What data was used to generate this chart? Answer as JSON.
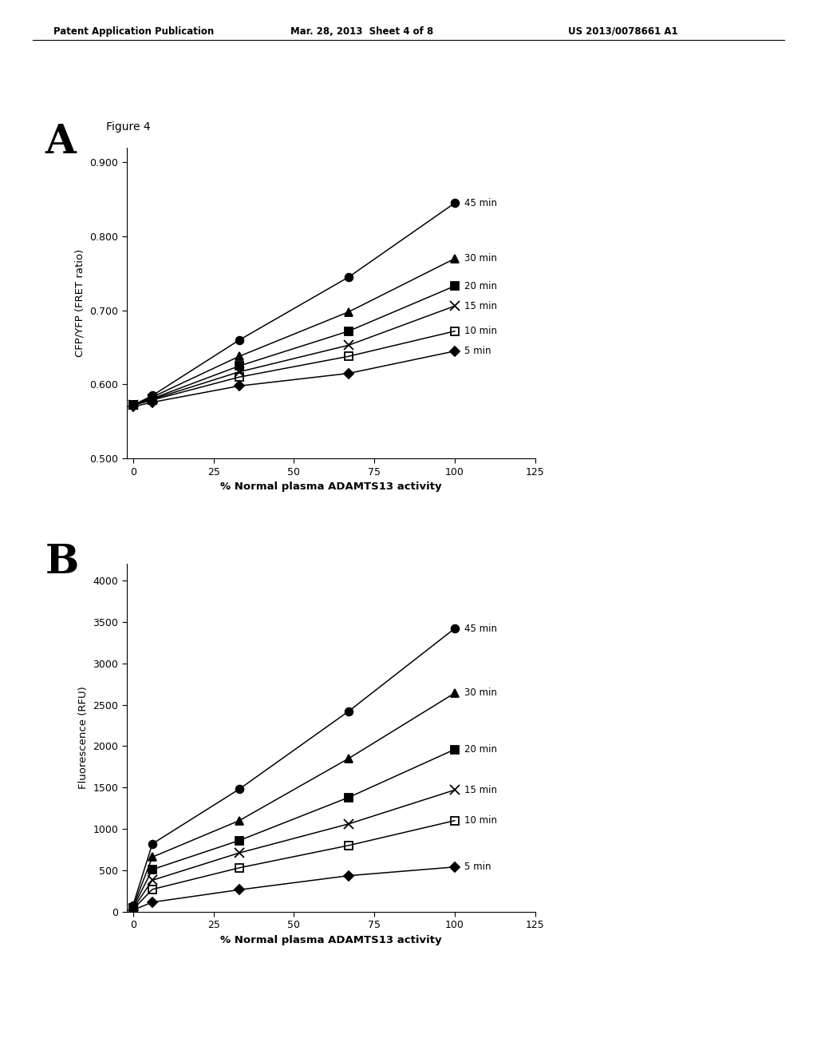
{
  "panel_A": {
    "xlabel": "% Normal plasma ADAMTS13 activity",
    "ylabel": "CFP/YFP (FRET ratio)",
    "xlim": [
      -2,
      125
    ],
    "ylim": [
      0.5,
      0.92
    ],
    "yticks": [
      0.5,
      0.6,
      0.7,
      0.8,
      0.9
    ],
    "xtick_vals": [
      0,
      25,
      50,
      75,
      100,
      125
    ],
    "xtick_labels": [
      "0",
      "25",
      "50",
      "75",
      "100",
      "125"
    ],
    "series": [
      {
        "label": "45 min",
        "x": [
          0,
          6,
          33,
          67,
          100
        ],
        "y": [
          0.572,
          0.585,
          0.66,
          0.745,
          0.845
        ],
        "marker": "o",
        "fillstyle": "full",
        "markersize": 7,
        "linestyle": "-"
      },
      {
        "label": "30 min",
        "x": [
          0,
          6,
          33,
          67,
          100
        ],
        "y": [
          0.572,
          0.583,
          0.638,
          0.698,
          0.77
        ],
        "marker": "^",
        "fillstyle": "full",
        "markersize": 7,
        "linestyle": "-"
      },
      {
        "label": "20 min",
        "x": [
          0,
          6,
          33,
          67,
          100
        ],
        "y": [
          0.572,
          0.581,
          0.625,
          0.672,
          0.733
        ],
        "marker": "s",
        "fillstyle": "full",
        "markersize": 7,
        "linestyle": "-"
      },
      {
        "label": "15 min",
        "x": [
          0,
          6,
          33,
          67,
          100
        ],
        "y": [
          0.572,
          0.58,
          0.617,
          0.653,
          0.706
        ],
        "marker": "x",
        "fillstyle": "full",
        "markersize": 8,
        "linestyle": "-"
      },
      {
        "label": "10 min",
        "x": [
          0,
          6,
          33,
          67,
          100
        ],
        "y": [
          0.572,
          0.579,
          0.61,
          0.638,
          0.672
        ],
        "marker": "s",
        "fillstyle": "none",
        "markersize": 7,
        "linestyle": "-"
      },
      {
        "label": "5 min",
        "x": [
          0,
          6,
          33,
          67,
          100
        ],
        "y": [
          0.57,
          0.576,
          0.598,
          0.615,
          0.645
        ],
        "marker": "D",
        "fillstyle": "full",
        "markersize": 6,
        "linestyle": "-"
      }
    ]
  },
  "panel_B": {
    "xlabel": "% Normal plasma ADAMTS13 activity",
    "ylabel": "Fluorescence (RFU)",
    "xlim": [
      -2,
      125
    ],
    "ylim": [
      0,
      4200
    ],
    "yticks": [
      0,
      500,
      1000,
      1500,
      2000,
      2500,
      3000,
      3500,
      4000
    ],
    "xtick_vals": [
      0,
      25,
      50,
      75,
      100,
      125
    ],
    "xtick_labels": [
      "0",
      "25",
      "50",
      "75",
      "100",
      "125"
    ],
    "series": [
      {
        "label": "45 min",
        "x": [
          0,
          6,
          33,
          67,
          100
        ],
        "y": [
          80,
          820,
          1480,
          2420,
          3420
        ],
        "marker": "o",
        "fillstyle": "full",
        "markersize": 7,
        "linestyle": "-"
      },
      {
        "label": "30 min",
        "x": [
          0,
          6,
          33,
          67,
          100
        ],
        "y": [
          60,
          660,
          1100,
          1850,
          2640
        ],
        "marker": "^",
        "fillstyle": "full",
        "markersize": 7,
        "linestyle": "-"
      },
      {
        "label": "20 min",
        "x": [
          0,
          6,
          33,
          67,
          100
        ],
        "y": [
          50,
          510,
          860,
          1380,
          1960
        ],
        "marker": "s",
        "fillstyle": "full",
        "markersize": 7,
        "linestyle": "-"
      },
      {
        "label": "15 min",
        "x": [
          0,
          6,
          33,
          67,
          100
        ],
        "y": [
          40,
          380,
          710,
          1060,
          1470
        ],
        "marker": "x",
        "fillstyle": "full",
        "markersize": 8,
        "linestyle": "-"
      },
      {
        "label": "10 min",
        "x": [
          0,
          6,
          33,
          67,
          100
        ],
        "y": [
          30,
          270,
          530,
          800,
          1100
        ],
        "marker": "s",
        "fillstyle": "none",
        "markersize": 7,
        "linestyle": "-"
      },
      {
        "label": "5 min",
        "x": [
          0,
          6,
          33,
          67,
          100
        ],
        "y": [
          20,
          115,
          265,
          435,
          540
        ],
        "marker": "D",
        "fillstyle": "full",
        "markersize": 6,
        "linestyle": "-"
      }
    ]
  },
  "header_left": "Patent Application Publication",
  "header_middle": "Mar. 28, 2013  Sheet 4 of 8",
  "header_right": "US 2013/0078661 A1",
  "figure_label": "Figure 4",
  "panel_A_label": "A",
  "panel_B_label": "B",
  "color": "#000000",
  "bg_color": "#ffffff"
}
